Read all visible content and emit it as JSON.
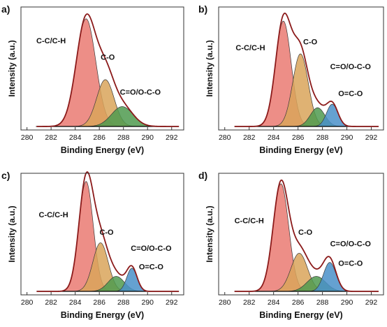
{
  "colors": {
    "envelope": "#8b1a1a",
    "baseline": "#000000",
    "frame": "#333333",
    "fill_cch": "#ea7a72",
    "fill_co": "#d9a55a",
    "fill_coo": "#4f9a4f",
    "fill_oco": "#4a90c9"
  },
  "chart_data": [
    {
      "type": "line",
      "panel_label": "a)",
      "xlabel": "Binding Energy (eV)",
      "ylabel": "Intensity (a.u.)",
      "xlim": [
        279.5,
        293
      ],
      "ylim": [
        0,
        1.05
      ],
      "xticks": [
        "280",
        "282",
        "284",
        "286",
        "288",
        "290",
        "292"
      ],
      "baseline": 0.03,
      "components": [
        {
          "label": "C-C/C-H",
          "center": 284.9,
          "height": 0.92,
          "fwhm": 1.9,
          "color_key": "fill_cch"
        },
        {
          "label": "C-O",
          "center": 286.5,
          "height": 0.4,
          "fwhm": 1.7,
          "color_key": "fill_co"
        },
        {
          "label": "C=O/O-C-O",
          "center": 287.9,
          "height": 0.17,
          "fwhm": 2.1,
          "color_key": "fill_coo"
        }
      ],
      "annotations": [
        {
          "text": "C-C/C-H",
          "x": 282.0,
          "y": 0.74
        },
        {
          "text": "C-O",
          "x": 286.7,
          "y": 0.6
        },
        {
          "text": "C=O/O-C-O",
          "x": 289.4,
          "y": 0.3
        }
      ]
    },
    {
      "type": "line",
      "panel_label": "b)",
      "xlabel": "Binding Energy (eV)",
      "ylabel": "Intensity (a.u.)",
      "xlim": [
        279.5,
        293
      ],
      "ylim": [
        0,
        1.05
      ],
      "xticks": [
        "280",
        "282",
        "284",
        "286",
        "288",
        "290",
        "292"
      ],
      "baseline": 0.03,
      "components": [
        {
          "label": "C-C/C-H",
          "center": 284.8,
          "height": 0.9,
          "fwhm": 1.5,
          "color_key": "fill_cch"
        },
        {
          "label": "C-O",
          "center": 286.2,
          "height": 0.62,
          "fwhm": 1.5,
          "color_key": "fill_co"
        },
        {
          "label": "C=O/O-C-O",
          "center": 287.6,
          "height": 0.16,
          "fwhm": 1.4,
          "color_key": "fill_coo"
        },
        {
          "label": "O=C-O",
          "center": 288.8,
          "height": 0.19,
          "fwhm": 1.1,
          "color_key": "fill_oco"
        }
      ],
      "annotations": [
        {
          "text": "C-C/C-H",
          "x": 282.1,
          "y": 0.68
        },
        {
          "text": "C-O",
          "x": 287.0,
          "y": 0.73
        },
        {
          "text": "C=O/O-C-O",
          "x": 290.3,
          "y": 0.52
        },
        {
          "text": "O=C-O",
          "x": 290.3,
          "y": 0.29
        }
      ]
    },
    {
      "type": "line",
      "panel_label": "c)",
      "xlabel": "Binding Energy (eV)",
      "ylabel": "Intensity (a.u.)",
      "xlim": [
        279.5,
        293
      ],
      "ylim": [
        0,
        1.05
      ],
      "xticks": [
        "280",
        "282",
        "284",
        "286",
        "288",
        "290",
        "292"
      ],
      "baseline": 0.03,
      "components": [
        {
          "label": "C-C/C-H",
          "center": 284.9,
          "height": 0.95,
          "fwhm": 1.4,
          "color_key": "fill_cch"
        },
        {
          "label": "C-O",
          "center": 286.1,
          "height": 0.42,
          "fwhm": 1.5,
          "color_key": "fill_co"
        },
        {
          "label": "C=O/O-C-O",
          "center": 287.4,
          "height": 0.13,
          "fwhm": 1.6,
          "color_key": "fill_coo"
        },
        {
          "label": "O=C-O",
          "center": 288.7,
          "height": 0.2,
          "fwhm": 1.0,
          "color_key": "fill_oco"
        }
      ],
      "annotations": [
        {
          "text": "C-C/C-H",
          "x": 282.2,
          "y": 0.67
        },
        {
          "text": "C-O",
          "x": 286.6,
          "y": 0.52
        },
        {
          "text": "C=O/O-C-O",
          "x": 290.3,
          "y": 0.38
        },
        {
          "text": "O=C-O",
          "x": 290.3,
          "y": 0.22
        }
      ]
    },
    {
      "type": "line",
      "panel_label": "d)",
      "xlabel": "Binding Energy (eV)",
      "ylabel": "Intensity (a.u.)",
      "xlim": [
        279.5,
        293
      ],
      "ylim": [
        0,
        1.05
      ],
      "xticks": [
        "280",
        "282",
        "284",
        "286",
        "288",
        "290",
        "292"
      ],
      "baseline": 0.03,
      "components": [
        {
          "label": "C-C/C-H",
          "center": 284.6,
          "height": 0.93,
          "fwhm": 1.5,
          "color_key": "fill_cch"
        },
        {
          "label": "C-O",
          "center": 286.1,
          "height": 0.33,
          "fwhm": 1.6,
          "color_key": "fill_co"
        },
        {
          "label": "C=O/O-C-O",
          "center": 287.5,
          "height": 0.13,
          "fwhm": 1.8,
          "color_key": "fill_coo"
        },
        {
          "label": "O=C-O",
          "center": 288.6,
          "height": 0.25,
          "fwhm": 1.2,
          "color_key": "fill_oco"
        }
      ],
      "annotations": [
        {
          "text": "C-C/C-H",
          "x": 282.0,
          "y": 0.62
        },
        {
          "text": "C-O",
          "x": 286.6,
          "y": 0.52
        },
        {
          "text": "C=O/O-C-O",
          "x": 290.3,
          "y": 0.42
        },
        {
          "text": "O=C-O",
          "x": 290.3,
          "y": 0.25
        }
      ]
    }
  ]
}
